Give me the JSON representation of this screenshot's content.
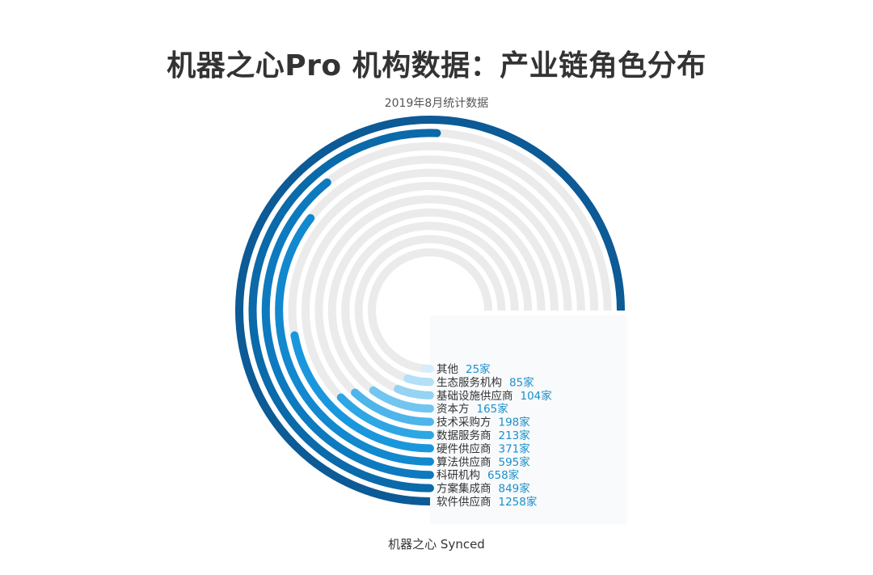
{
  "title": "机器之心Pro 机构数据：产业链角色分布",
  "subtitle": "2019年8月统计数据",
  "footer": "机器之心 Synced",
  "colors": {
    "track": "#ebebeb",
    "value_text": "#1a8fc9",
    "panel": "#f8fafc"
  },
  "chart_data": {
    "type": "radial_bar",
    "unit": "家",
    "categories": [
      "其他",
      "生态服务机构",
      "基础设施供应商",
      "资本方",
      "技术采购方",
      "数据服务商",
      "硬件供应商",
      "算法供应商",
      "科研机构",
      "方案集成商",
      "软件供应商"
    ],
    "values": [
      25,
      85,
      104,
      165,
      198,
      213,
      371,
      595,
      658,
      849,
      1258
    ],
    "value_labels": [
      "25家",
      "85家",
      "104家",
      "165家",
      "198家",
      "213家",
      "371家",
      "595家",
      "658家",
      "849家",
      "1258家"
    ],
    "max": 1258,
    "bar_colors": [
      "#d6eefb",
      "#b3e0f7",
      "#94d3f3",
      "#72c5ef",
      "#4db5ea",
      "#2ea6e4",
      "#1a97dc",
      "#1288cf",
      "#0d7abf",
      "#0a6aaa",
      "#0c5a96"
    ]
  }
}
